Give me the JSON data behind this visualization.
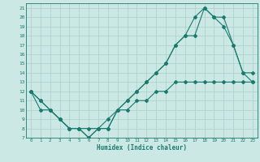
{
  "xlabel": "Humidex (Indice chaleur)",
  "bg_color": "#cce8e4",
  "line_color": "#1a7a6e",
  "grid_color": "#a8d0cc",
  "xlim": [
    -0.5,
    23.5
  ],
  "ylim": [
    7,
    21.5
  ],
  "xticks": [
    0,
    1,
    2,
    3,
    4,
    5,
    6,
    7,
    8,
    9,
    10,
    11,
    12,
    13,
    14,
    15,
    16,
    17,
    18,
    19,
    20,
    21,
    22,
    23
  ],
  "yticks": [
    7,
    8,
    9,
    10,
    11,
    12,
    13,
    14,
    15,
    16,
    17,
    18,
    19,
    20,
    21
  ],
  "curve1_x": [
    0,
    1,
    2,
    3,
    4,
    5,
    6,
    7,
    8,
    9,
    10,
    11,
    12,
    13,
    14,
    15,
    16,
    17,
    18,
    19,
    20,
    21,
    22,
    23
  ],
  "curve1_y": [
    12,
    11,
    10,
    9,
    8,
    8,
    7,
    8,
    8,
    10,
    10,
    11,
    11,
    12,
    12,
    13,
    13,
    13,
    13,
    13,
    13,
    13,
    13,
    13
  ],
  "curve2_x": [
    0,
    1,
    2,
    3,
    4,
    5,
    6,
    7,
    8,
    9,
    10,
    11,
    12,
    13,
    14,
    15,
    16,
    17,
    18,
    19,
    20,
    21,
    22,
    23
  ],
  "curve2_y": [
    12,
    11,
    10,
    9,
    8,
    8,
    7,
    8,
    8,
    10,
    11,
    12,
    13,
    14,
    15,
    17,
    18,
    18,
    21,
    20,
    19,
    17,
    14,
    13
  ],
  "curve3_x": [
    0,
    1,
    2,
    3,
    4,
    5,
    6,
    7,
    8,
    9,
    10,
    11,
    12,
    13,
    14,
    15,
    16,
    17,
    18,
    19,
    20,
    21,
    22,
    23
  ],
  "curve3_y": [
    12,
    10,
    10,
    9,
    8,
    8,
    8,
    8,
    9,
    10,
    11,
    12,
    13,
    14,
    15,
    17,
    18,
    20,
    21,
    20,
    20,
    17,
    14,
    14
  ]
}
